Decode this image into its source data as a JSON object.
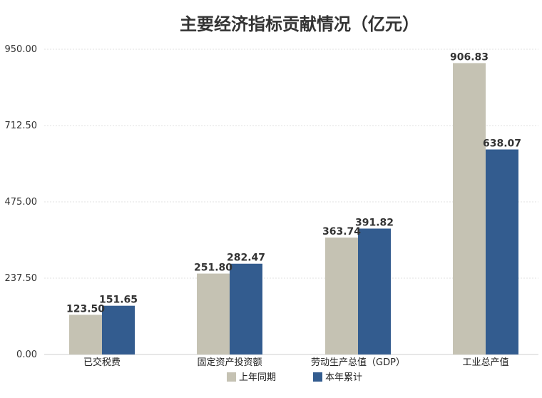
{
  "chart_data": {
    "type": "bar",
    "title": "主要经济指标贡献情况（亿元）",
    "xlabel": "",
    "ylabel": "",
    "ylim": [
      0,
      950
    ],
    "yticks": [
      "0.00",
      "237.50",
      "475.00",
      "712.50",
      "950.00"
    ],
    "ytick_values": [
      0,
      237.5,
      475,
      712.5,
      950
    ],
    "grid": true,
    "legend_position": "bottom-center",
    "categories": [
      "已交税费",
      "固定资产投资额",
      "劳动生产总值（GDP）",
      "工业总产值"
    ],
    "series": [
      {
        "name": "上年同期",
        "color": "#c5c2b3",
        "values": [
          123.5,
          251.8,
          363.74,
          906.83
        ],
        "labels": [
          "123.50",
          "251.80",
          "363.74",
          "906.83"
        ]
      },
      {
        "name": "本年累计",
        "color": "#335c8f",
        "values": [
          151.65,
          282.47,
          391.82,
          638.07
        ],
        "labels": [
          "151.65",
          "282.47",
          "391.82",
          "638.07"
        ]
      }
    ]
  }
}
